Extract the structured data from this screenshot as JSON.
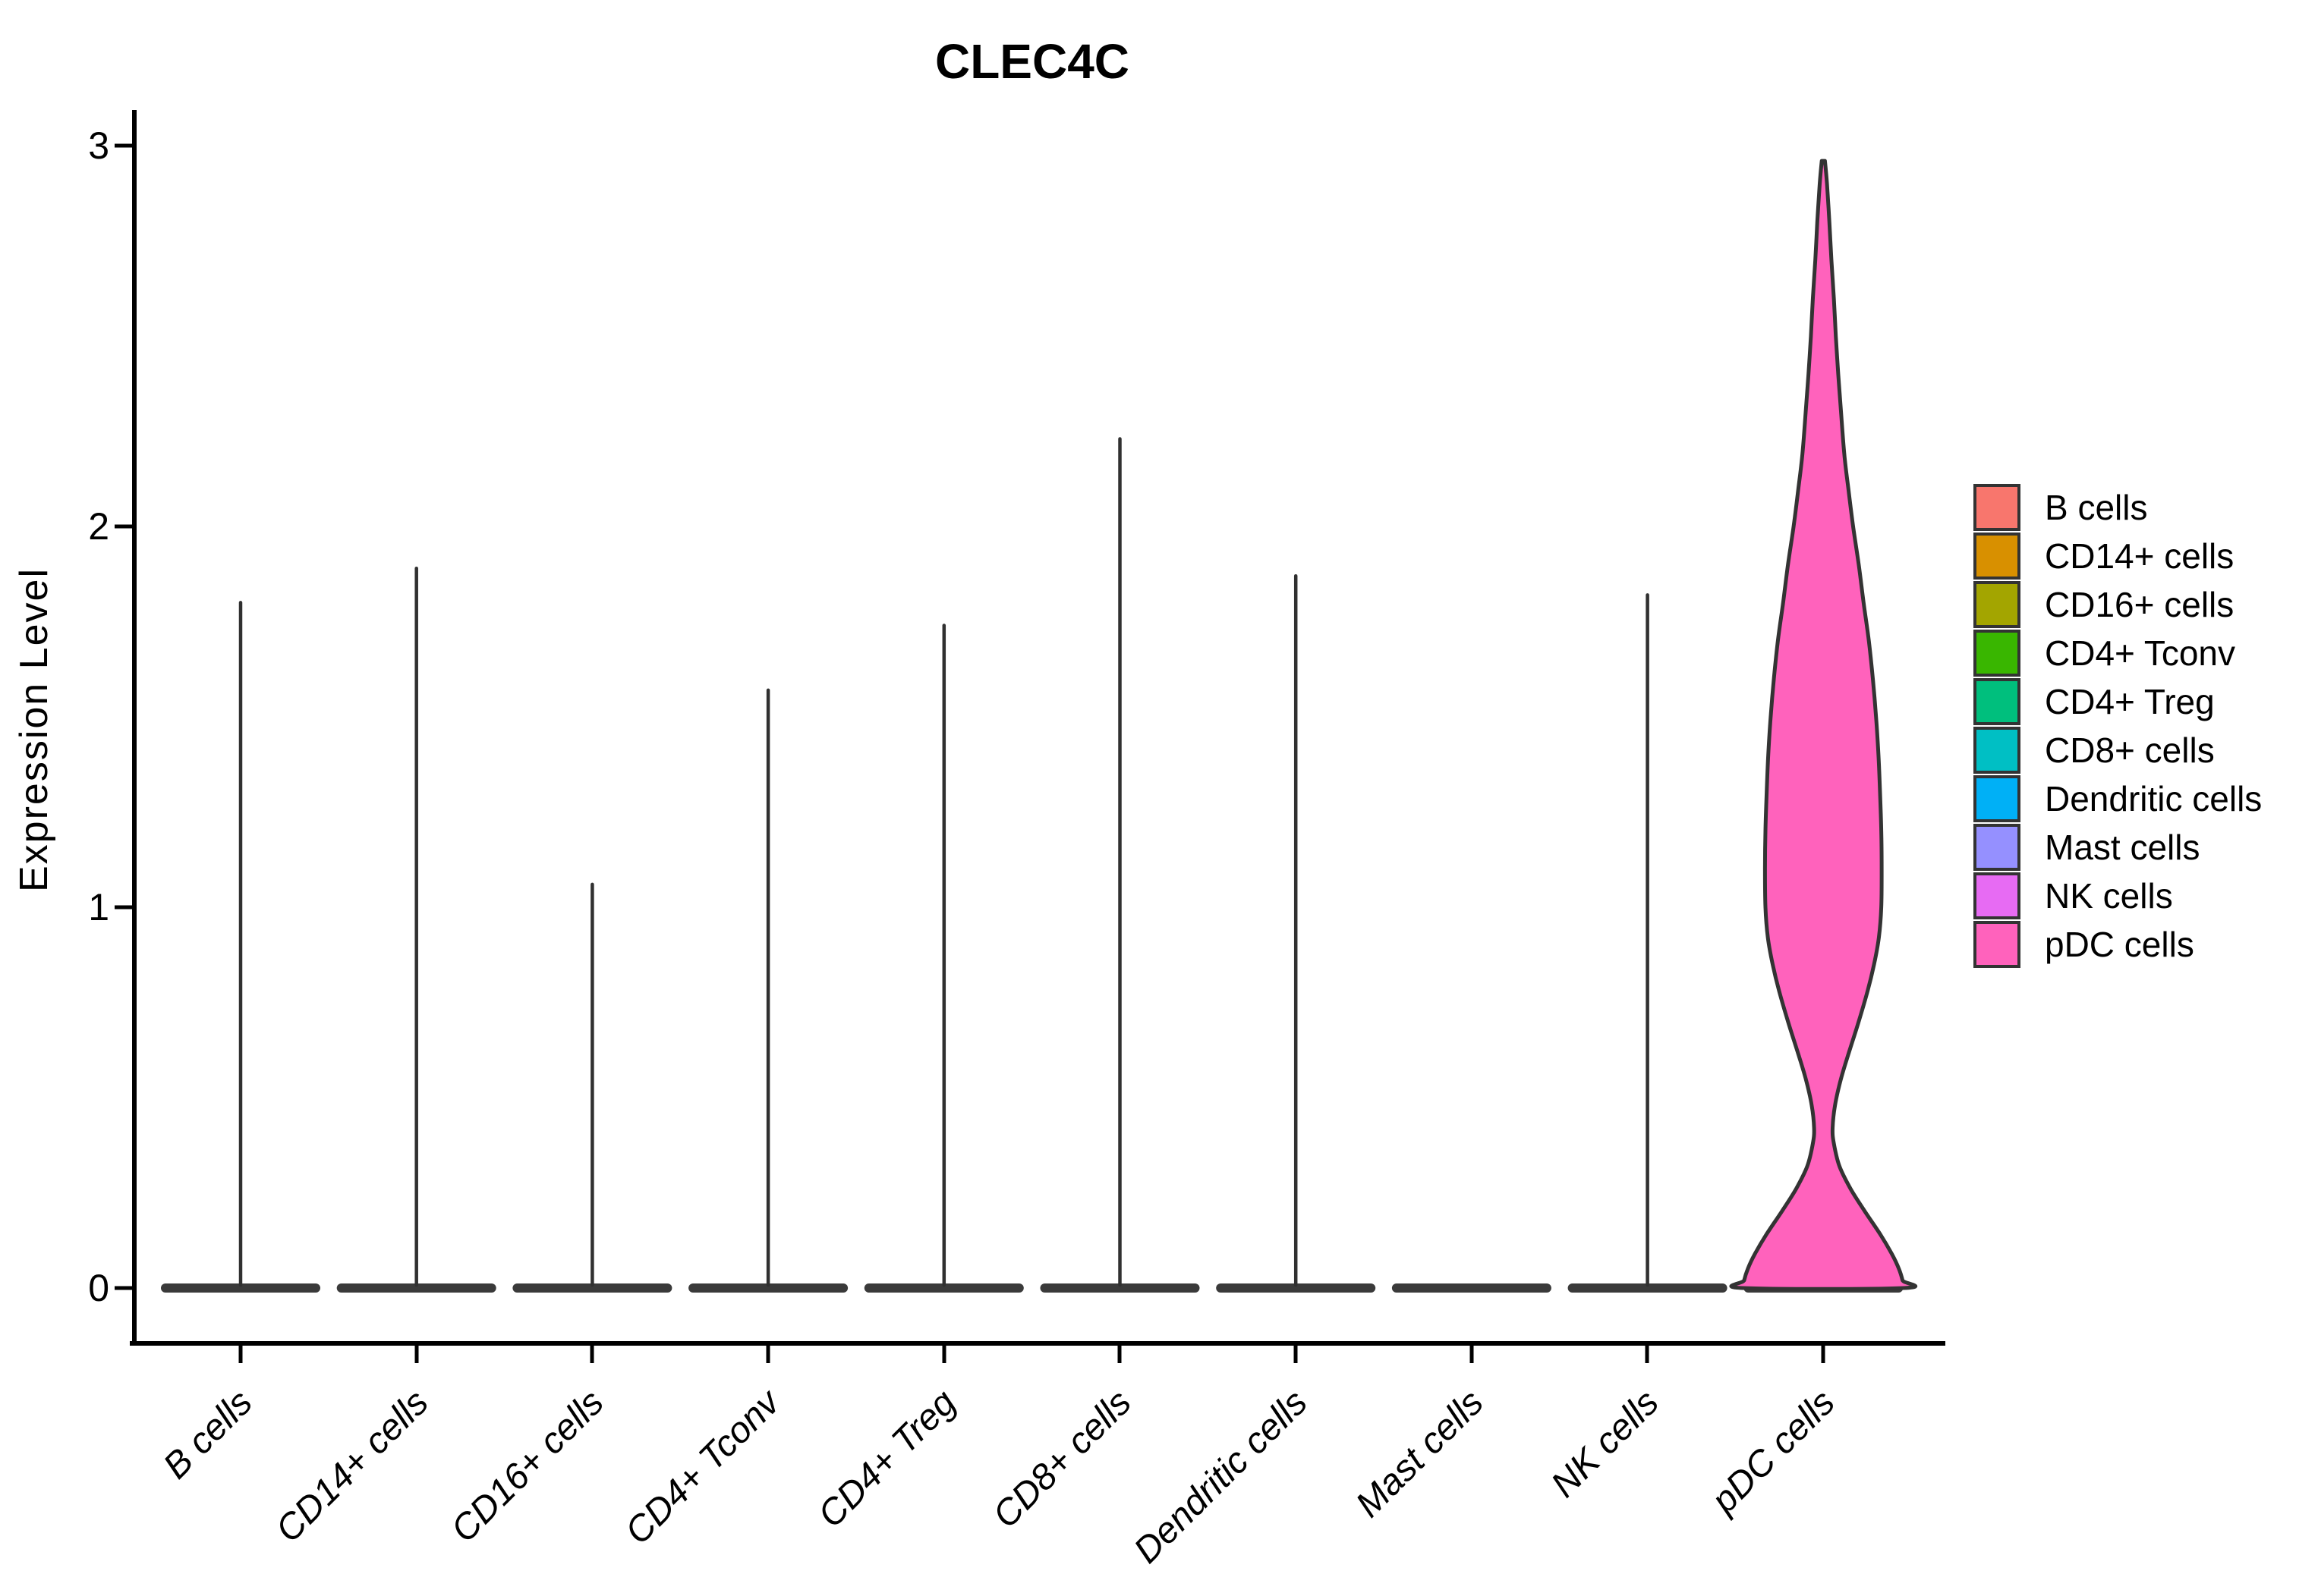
{
  "chart_data": {
    "type": "violin",
    "title": "CLEC4C",
    "xlabel": "",
    "ylabel": "Expression Level",
    "ylim": [
      0,
      3
    ],
    "yticks": [
      "0",
      "1",
      "2",
      "3"
    ],
    "grid": false,
    "legend_position": "right",
    "categories": [
      "B cells",
      "CD14+ cells",
      "CD16+ cells",
      "CD4+ Tconv",
      "CD4+ Treg",
      "CD8+ cells",
      "Dendritic cells",
      "Mast cells",
      "NK cells",
      "pDC cells"
    ],
    "series": [
      {
        "name": "B cells",
        "color": "#F8766D",
        "max_expression": 1.8,
        "zero_collapsed": true
      },
      {
        "name": "CD14+ cells",
        "color": "#D89000",
        "max_expression": 1.89,
        "zero_collapsed": true
      },
      {
        "name": "CD16+ cells",
        "color": "#A3A500",
        "max_expression": 1.06,
        "zero_collapsed": true
      },
      {
        "name": "CD4+ Tconv",
        "color": "#39B600",
        "max_expression": 1.57,
        "zero_collapsed": true
      },
      {
        "name": "CD4+ Treg",
        "color": "#00BF7D",
        "max_expression": 1.74,
        "zero_collapsed": true
      },
      {
        "name": "CD8+ cells",
        "color": "#00BFC4",
        "max_expression": 2.23,
        "zero_collapsed": true
      },
      {
        "name": "Dendritic cells",
        "color": "#00B0F6",
        "max_expression": 1.87,
        "zero_collapsed": true
      },
      {
        "name": "Mast cells",
        "color": "#9590FF",
        "max_expression": 0,
        "zero_collapsed": true
      },
      {
        "name": "NK cells",
        "color": "#E76BF3",
        "max_expression": 1.82,
        "zero_collapsed": true
      },
      {
        "name": "pDC cells",
        "color": "#FF62BC",
        "max_expression": 2.96,
        "zero_collapsed": false,
        "violin_profile": [
          [
            2.96,
            0.02
          ],
          [
            2.9,
            0.045
          ],
          [
            2.8,
            0.075
          ],
          [
            2.7,
            0.1
          ],
          [
            2.6,
            0.13
          ],
          [
            2.5,
            0.155
          ],
          [
            2.4,
            0.185
          ],
          [
            2.3,
            0.22
          ],
          [
            2.19,
            0.26
          ],
          [
            2.1,
            0.31
          ],
          [
            2.0,
            0.37
          ],
          [
            1.9,
            0.44
          ],
          [
            1.8,
            0.5
          ],
          [
            1.7,
            0.565
          ],
          [
            1.6,
            0.615
          ],
          [
            1.5,
            0.655
          ],
          [
            1.4,
            0.685
          ],
          [
            1.3,
            0.705
          ],
          [
            1.2,
            0.72
          ],
          [
            1.1,
            0.725
          ],
          [
            1.0,
            0.72
          ],
          [
            0.92,
            0.69
          ],
          [
            0.85,
            0.63
          ],
          [
            0.78,
            0.55
          ],
          [
            0.7,
            0.44
          ],
          [
            0.62,
            0.32
          ],
          [
            0.55,
            0.22
          ],
          [
            0.48,
            0.145
          ],
          [
            0.42,
            0.115
          ],
          [
            0.38,
            0.13
          ],
          [
            0.32,
            0.2
          ],
          [
            0.26,
            0.34
          ],
          [
            0.2,
            0.52
          ],
          [
            0.14,
            0.71
          ],
          [
            0.09,
            0.85
          ],
          [
            0.05,
            0.94
          ],
          [
            0.02,
            0.985
          ],
          [
            0.0,
            1.0
          ]
        ]
      }
    ]
  }
}
